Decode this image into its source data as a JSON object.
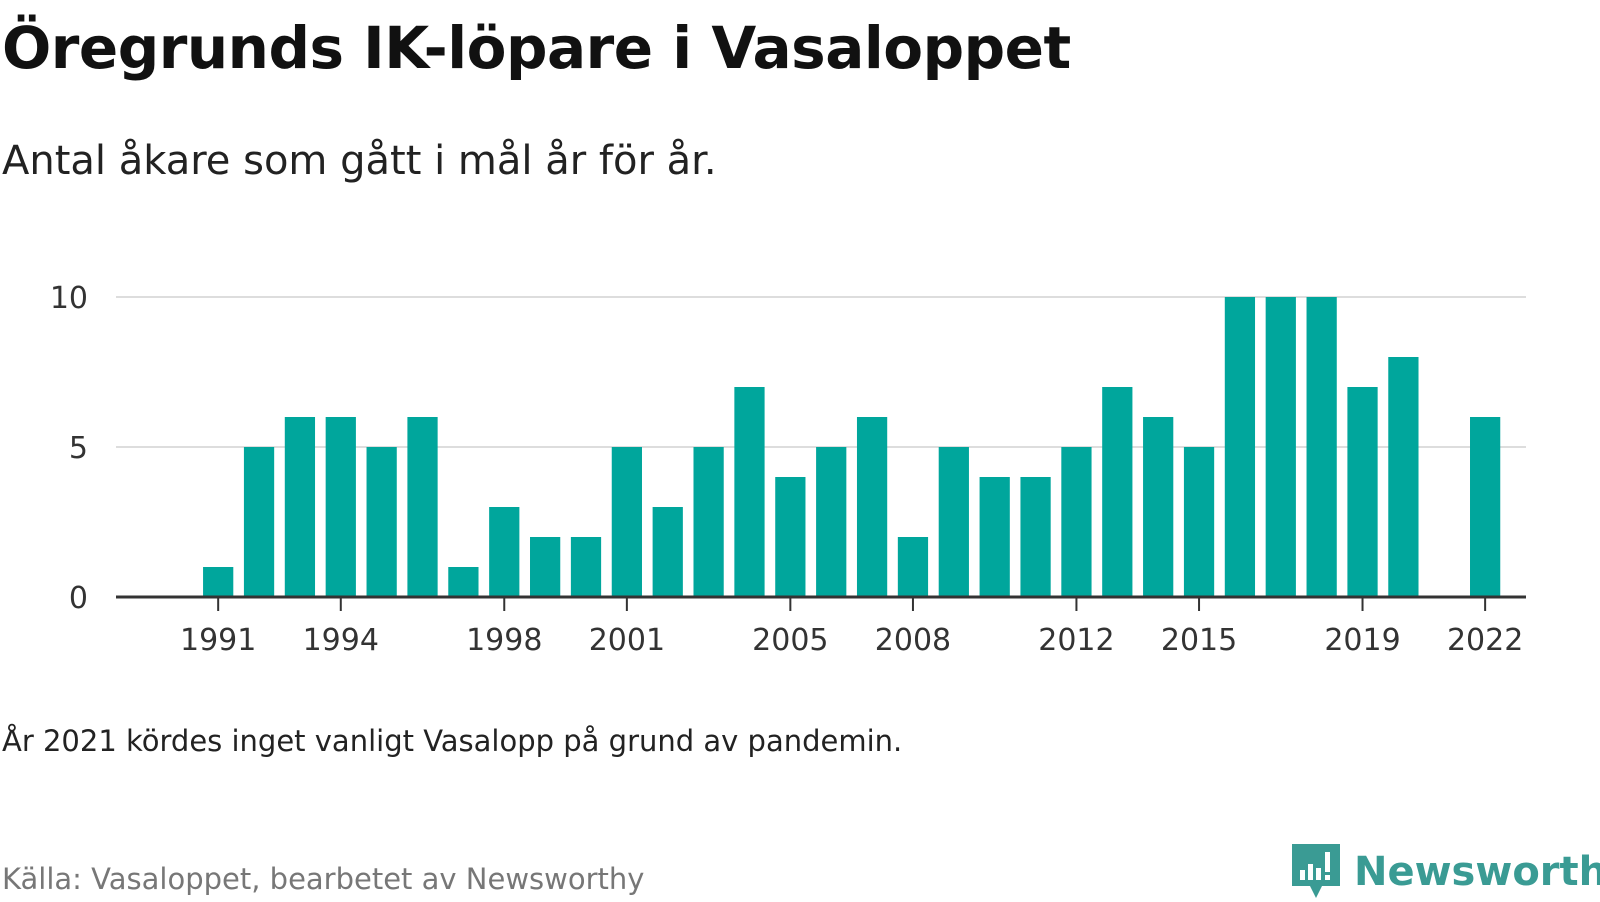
{
  "title": "Öregrunds IK-löpare i Vasaloppet",
  "subtitle": "Antal åkare som gått i mål år för år.",
  "note": "År 2021 kördes inget vanligt Vasalopp på grund av pandemin.",
  "source": "Källa: Vasaloppet, bearbetet av Newsworthy",
  "logo": {
    "text": "Newsworthy",
    "icon": "newsworthy-bar-chart-icon",
    "color": "#3a9b94"
  },
  "chart_data": {
    "type": "bar",
    "x": [
      1991,
      1992,
      1993,
      1994,
      1995,
      1996,
      1997,
      1998,
      1999,
      2000,
      2001,
      2002,
      2003,
      2004,
      2005,
      2006,
      2007,
      2008,
      2009,
      2010,
      2011,
      2012,
      2013,
      2014,
      2015,
      2016,
      2017,
      2018,
      2019,
      2020,
      2022
    ],
    "values": [
      1,
      5,
      6,
      6,
      5,
      6,
      1,
      3,
      2,
      2,
      5,
      3,
      5,
      7,
      4,
      5,
      6,
      2,
      5,
      4,
      4,
      5,
      7,
      6,
      5,
      10,
      10,
      10,
      7,
      8,
      6
    ],
    "x_ticks": [
      1991,
      1994,
      1998,
      2001,
      2005,
      2008,
      2012,
      2015,
      2019,
      2022
    ],
    "y_ticks": [
      0,
      5,
      10
    ],
    "xlim": [
      1988.5,
      1923.5
    ],
    "ylim": [
      0,
      10
    ],
    "grid": true,
    "bar_color": "#00a69c",
    "gridline_color": "#dddddd",
    "axis_color": "#333333"
  }
}
